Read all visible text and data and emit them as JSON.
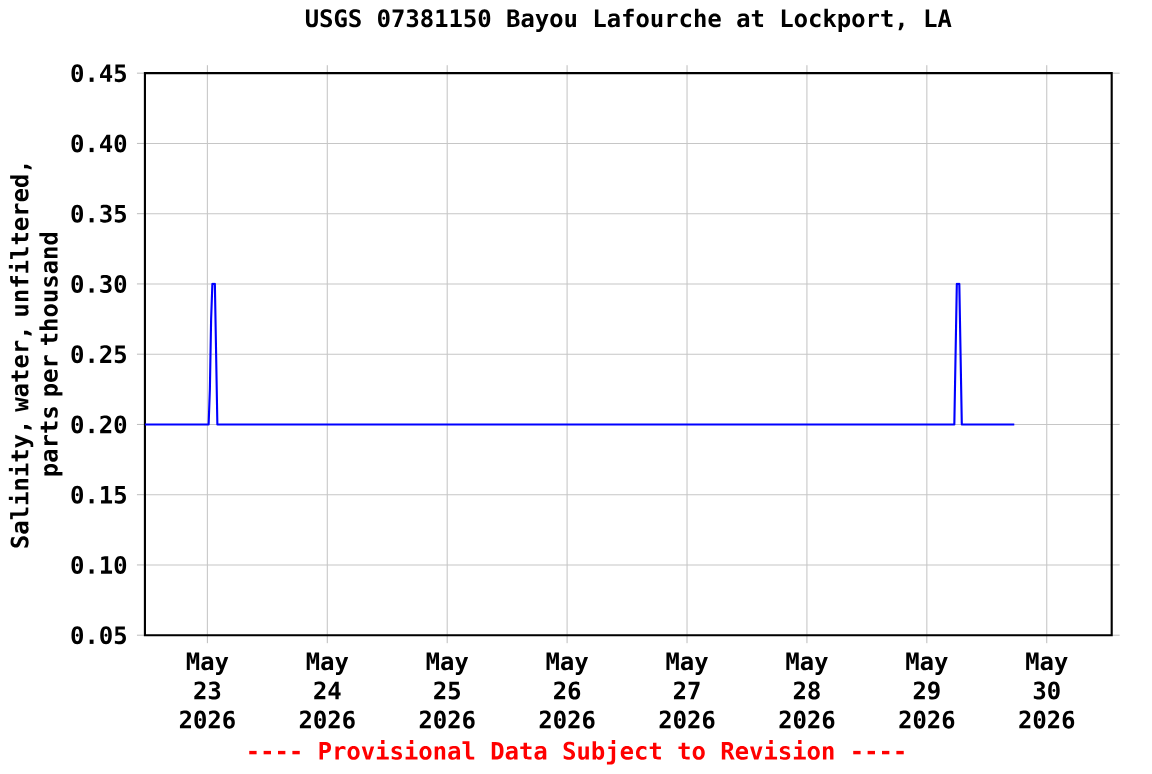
{
  "chart_data": {
    "type": "line",
    "title": "USGS 07381150 Bayou Lafourche at Lockport, LA",
    "ylabel": "Salinity, water, unfiltered, parts per thousand",
    "annotations": [
      "---- Provisional Data Subject to Revision ----"
    ],
    "x": [
      "2026-05-22T11:30",
      "2026-05-23T00:15",
      "2026-05-23T00:30",
      "2026-05-23T00:45",
      "2026-05-23T01:00",
      "2026-05-23T01:30",
      "2026-05-23T01:45",
      "2026-05-23T02:00",
      "2026-05-29T05:30",
      "2026-05-29T05:45",
      "2026-05-29T06:00",
      "2026-05-29T06:30",
      "2026-05-29T06:45",
      "2026-05-29T07:00",
      "2026-05-29T17:30"
    ],
    "series": [
      {
        "color": "#0000ff",
        "values": [
          0.2,
          0.2,
          0.225,
          0.275,
          0.3,
          0.3,
          0.25,
          0.2,
          0.2,
          0.25,
          0.3,
          0.3,
          0.25,
          0.2,
          0.2
        ]
      }
    ],
    "xlim": [
      "2026-05-22T11:30",
      "2026-05-30T13:00"
    ],
    "xticks": [
      {
        "value": "2026-05-23",
        "label": "May 23 2026"
      },
      {
        "value": "2026-05-24",
        "label": "May 24 2026"
      },
      {
        "value": "2026-05-25",
        "label": "May 25 2026"
      },
      {
        "value": "2026-05-26",
        "label": "May 26 2026"
      },
      {
        "value": "2026-05-27",
        "label": "May 27 2026"
      },
      {
        "value": "2026-05-28",
        "label": "May 28 2026"
      },
      {
        "value": "2026-05-29",
        "label": "May 29 2026"
      },
      {
        "value": "2026-05-30",
        "label": "May 30 2026"
      }
    ],
    "ylim": [
      0.05,
      0.45
    ],
    "yticks": [
      {
        "value": 0.05,
        "label": "0.05"
      },
      {
        "value": 0.1,
        "label": "0.10"
      },
      {
        "value": 0.15,
        "label": "0.15"
      },
      {
        "value": 0.2,
        "label": "0.20"
      },
      {
        "value": 0.25,
        "label": "0.25"
      },
      {
        "value": 0.3,
        "label": "0.30"
      },
      {
        "value": 0.35,
        "label": "0.35"
      },
      {
        "value": 0.4,
        "label": "0.40"
      },
      {
        "value": 0.45,
        "label": "0.45"
      }
    ],
    "grid": true,
    "marker": "none",
    "line_style": "solid"
  }
}
